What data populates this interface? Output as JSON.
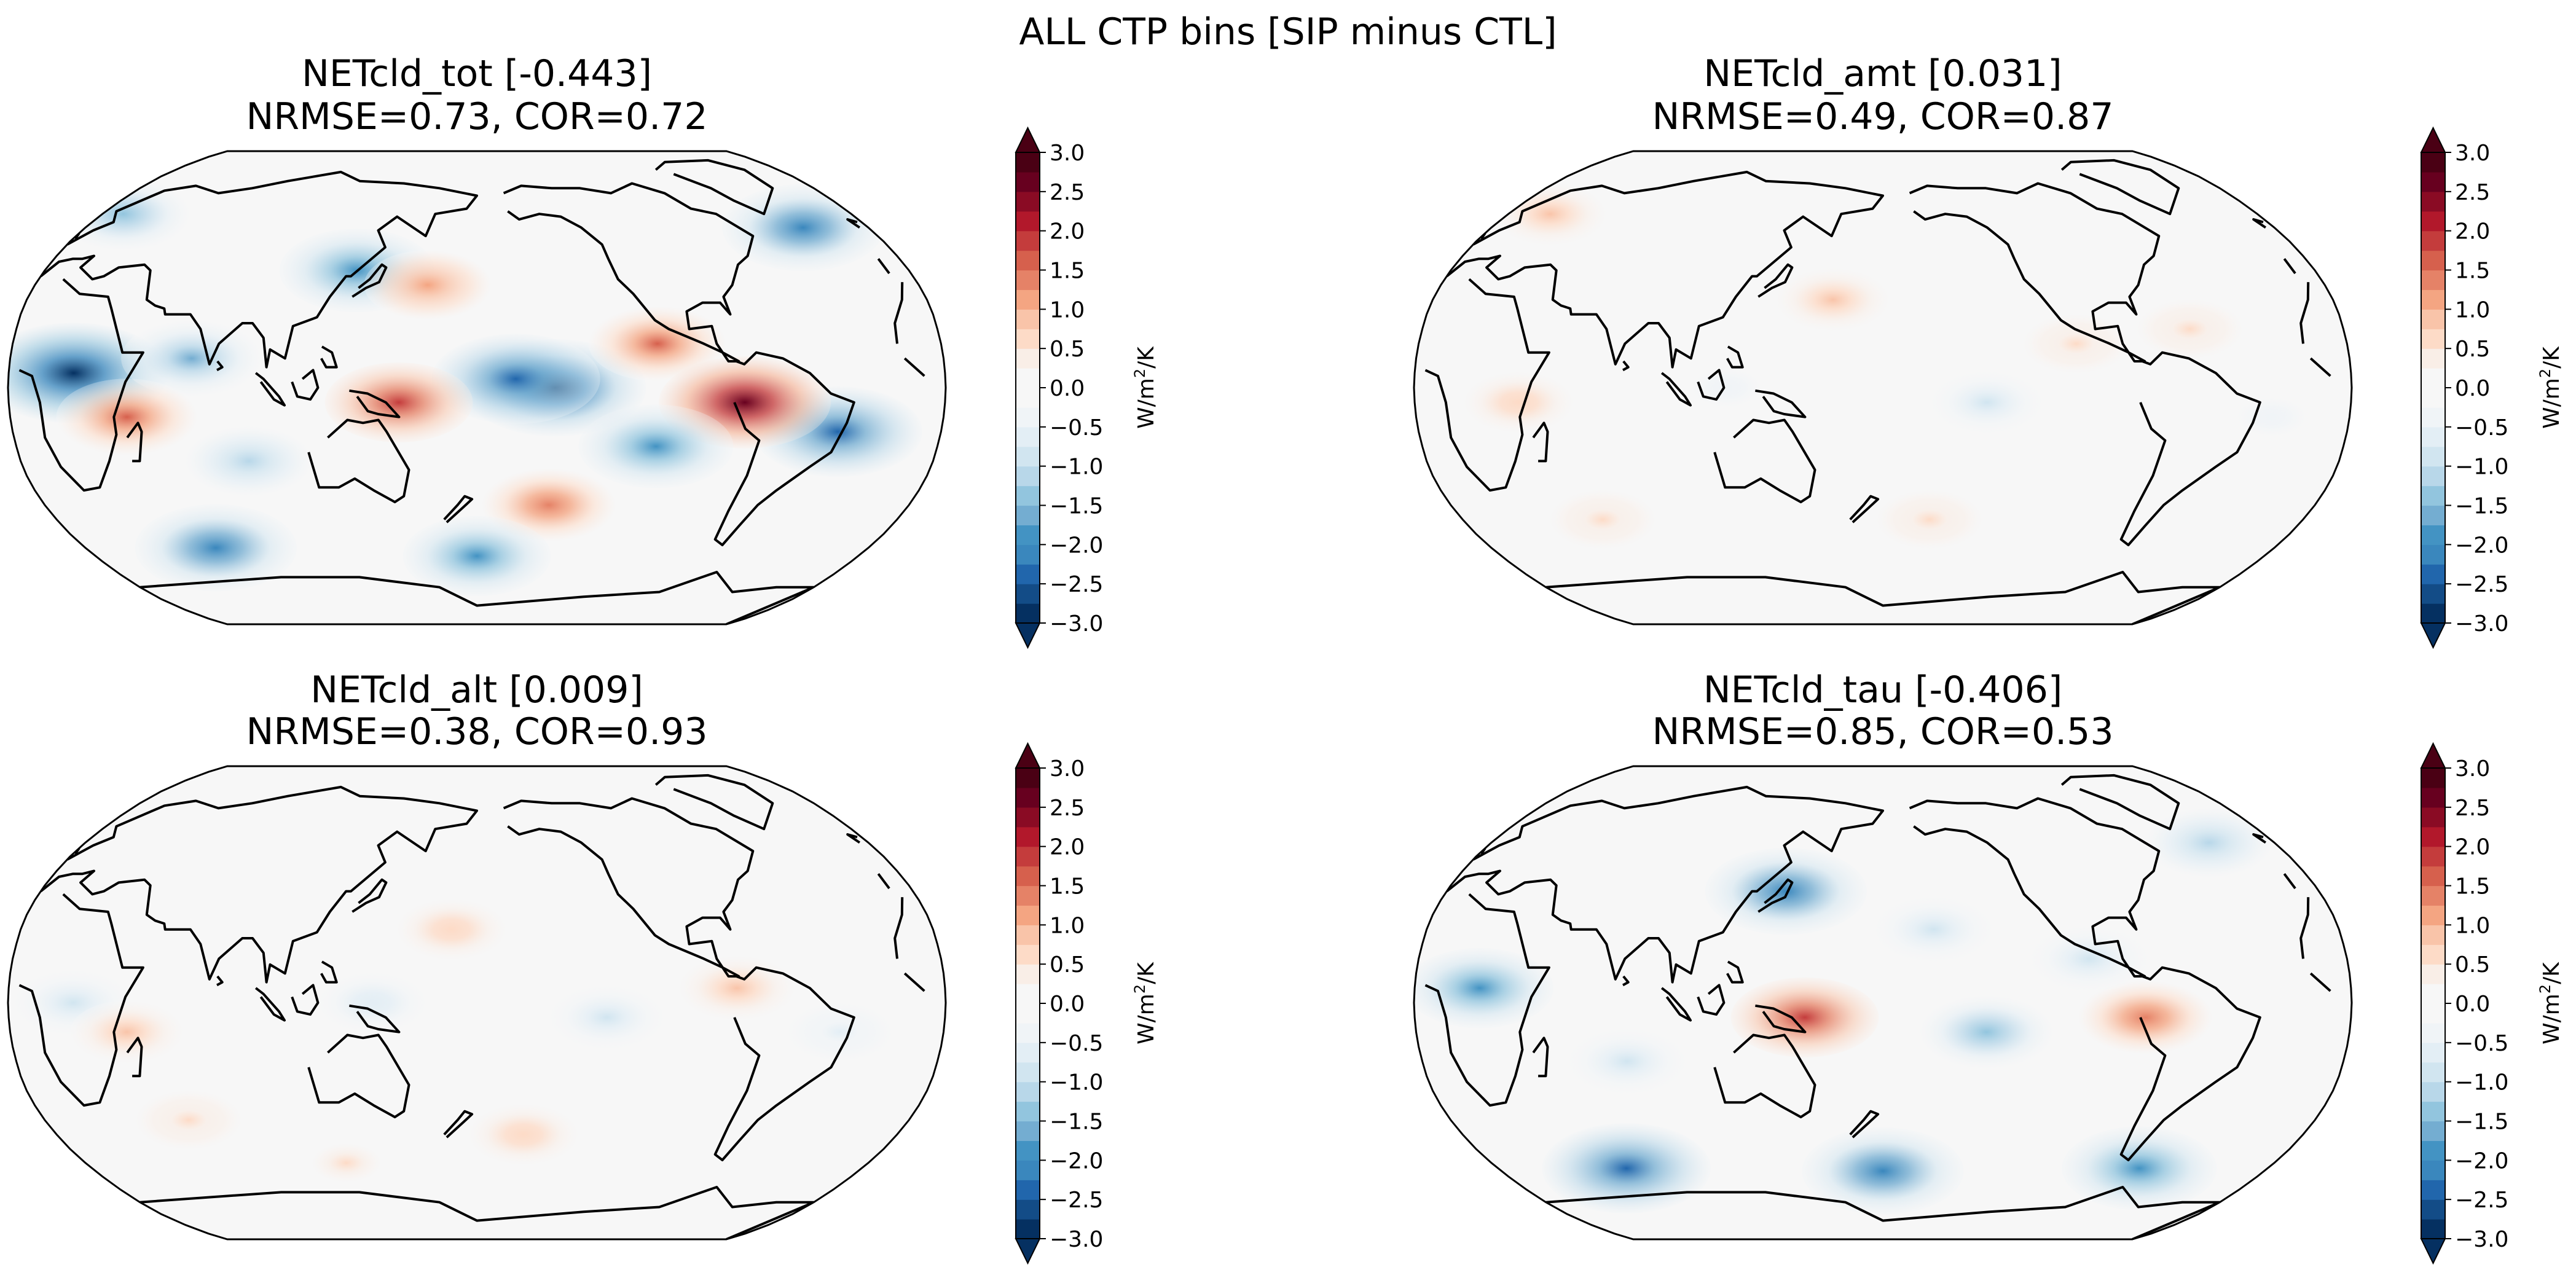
{
  "figure": {
    "suptitle": "ALL CTP bins [SIP minus CTL]"
  },
  "colorbar": {
    "label_prefix": "W/m",
    "label_exp": "2",
    "label_suffix": "/K",
    "label_full": "W/m²/K",
    "ticks": [
      "3.0",
      "2.5",
      "2.0",
      "1.5",
      "1.0",
      "0.5",
      "0.0",
      "−0.5",
      "−1.0",
      "−1.5",
      "−2.0",
      "−2.5",
      "−3.0"
    ],
    "vmin": -3.0,
    "vmax": 3.0,
    "levels": 24,
    "colormap": "RdBu_r",
    "colors": [
      "#053061",
      "#134c87",
      "#2166ac",
      "#3a87bd",
      "#4393c3",
      "#74add1",
      "#92c5de",
      "#b8d7e9",
      "#d1e5f0",
      "#e3eef5",
      "#f0f4f7",
      "#f7f7f7",
      "#f7f7f7",
      "#f9eee7",
      "#fddbc7",
      "#f9c4a9",
      "#f4a582",
      "#e58267",
      "#d6604d",
      "#c43c3c",
      "#b2182b",
      "#8a0b24",
      "#67001f",
      "#4a0014"
    ],
    "extend": "both"
  },
  "chart_data": [
    {
      "type": "heatmap",
      "projection": "Robinson (central longitude 180)",
      "title_line1": "NETcld_tot [-0.443]",
      "title_line2": "NRMSE=0.73, COR=0.72",
      "global_mean": -0.443,
      "nrmse": 0.73,
      "cor": 0.72,
      "anomalies": [
        {
          "lon": 25,
          "lat": 5,
          "value": -3.0
        },
        {
          "lon": 210,
          "lat": 0,
          "value": -2.8
        },
        {
          "lon": 195,
          "lat": 3,
          "value": -2.4
        },
        {
          "lon": 320,
          "lat": -15,
          "value": -2.4
        },
        {
          "lon": 130,
          "lat": 40,
          "value": -2.0
        },
        {
          "lon": 330,
          "lat": 55,
          "value": -2.2
        },
        {
          "lon": 160,
          "lat": 35,
          "value": 1.2
        },
        {
          "lon": 250,
          "lat": 15,
          "value": 1.5
        },
        {
          "lon": 283,
          "lat": -5,
          "value": 2.5
        },
        {
          "lon": 70,
          "lat": 10,
          "value": -1.6
        },
        {
          "lon": 150,
          "lat": -5,
          "value": 1.8
        },
        {
          "lon": 210,
          "lat": -40,
          "value": 1.4
        },
        {
          "lon": 60,
          "lat": -55,
          "value": -2.2
        },
        {
          "lon": 180,
          "lat": -58,
          "value": -1.8
        },
        {
          "lon": 45,
          "lat": -10,
          "value": 1.6
        },
        {
          "lon": 90,
          "lat": -25,
          "value": -1.2
        },
        {
          "lon": 250,
          "lat": -20,
          "value": -2.0
        },
        {
          "lon": 10,
          "lat": 60,
          "value": -1.4
        }
      ]
    },
    {
      "type": "heatmap",
      "projection": "Robinson (central longitude 180)",
      "title_line1": "NETcld_amt [0.031]",
      "title_line2": "NRMSE=0.49, COR=0.87",
      "global_mean": 0.031,
      "nrmse": 0.49,
      "cor": 0.87,
      "anomalies": [
        {
          "lon": 160,
          "lat": 30,
          "value": 0.8
        },
        {
          "lon": 200,
          "lat": -45,
          "value": 0.6
        },
        {
          "lon": 60,
          "lat": -45,
          "value": 0.6
        },
        {
          "lon": 20,
          "lat": 60,
          "value": 0.8
        },
        {
          "lon": 220,
          "lat": -5,
          "value": -0.8
        },
        {
          "lon": 300,
          "lat": 20,
          "value": 0.6
        },
        {
          "lon": 40,
          "lat": -5,
          "value": 0.7
        },
        {
          "lon": 120,
          "lat": 0,
          "value": -0.5
        },
        {
          "lon": 255,
          "lat": 15,
          "value": 0.6
        },
        {
          "lon": 330,
          "lat": -10,
          "value": -0.5
        }
      ]
    },
    {
      "type": "heatmap",
      "projection": "Robinson (central longitude 180)",
      "title_line1": "NETcld_alt [0.009]",
      "title_line2": "NRMSE=0.38, COR=0.93",
      "global_mean": 0.009,
      "nrmse": 0.38,
      "cor": 0.93,
      "anomalies": [
        {
          "lon": 25,
          "lat": 0,
          "value": -1.0
        },
        {
          "lon": 170,
          "lat": 25,
          "value": 0.7
        },
        {
          "lon": 200,
          "lat": -45,
          "value": 0.7
        },
        {
          "lon": 60,
          "lat": -40,
          "value": 0.6
        },
        {
          "lon": 230,
          "lat": -5,
          "value": -0.9
        },
        {
          "lon": 280,
          "lat": 5,
          "value": 0.9
        },
        {
          "lon": 45,
          "lat": -10,
          "value": 0.8
        },
        {
          "lon": 140,
          "lat": 0,
          "value": -0.7
        },
        {
          "lon": 320,
          "lat": -10,
          "value": -0.6
        },
        {
          "lon": 120,
          "lat": -55,
          "value": 0.5
        }
      ]
    },
    {
      "type": "heatmap",
      "projection": "Robinson (central longitude 180)",
      "title_line1": "NETcld_tau [-0.406]",
      "title_line2": "NRMSE=0.85, COR=0.53",
      "global_mean": -0.406,
      "nrmse": 0.85,
      "cor": 0.53,
      "anomalies": [
        {
          "lon": 140,
          "lat": 38,
          "value": -2.2
        },
        {
          "lon": 150,
          "lat": -5,
          "value": 1.8
        },
        {
          "lon": 25,
          "lat": 5,
          "value": -1.8
        },
        {
          "lon": 60,
          "lat": -57,
          "value": -2.4
        },
        {
          "lon": 180,
          "lat": -58,
          "value": -2.2
        },
        {
          "lon": 300,
          "lat": -57,
          "value": -2.0
        },
        {
          "lon": 281,
          "lat": -5,
          "value": 1.4
        },
        {
          "lon": 220,
          "lat": -10,
          "value": -1.4
        },
        {
          "lon": 330,
          "lat": 55,
          "value": -1.2
        },
        {
          "lon": 200,
          "lat": 25,
          "value": -1.0
        },
        {
          "lon": 260,
          "lat": 15,
          "value": -1.0
        },
        {
          "lon": 80,
          "lat": -20,
          "value": -1.0
        }
      ]
    }
  ]
}
